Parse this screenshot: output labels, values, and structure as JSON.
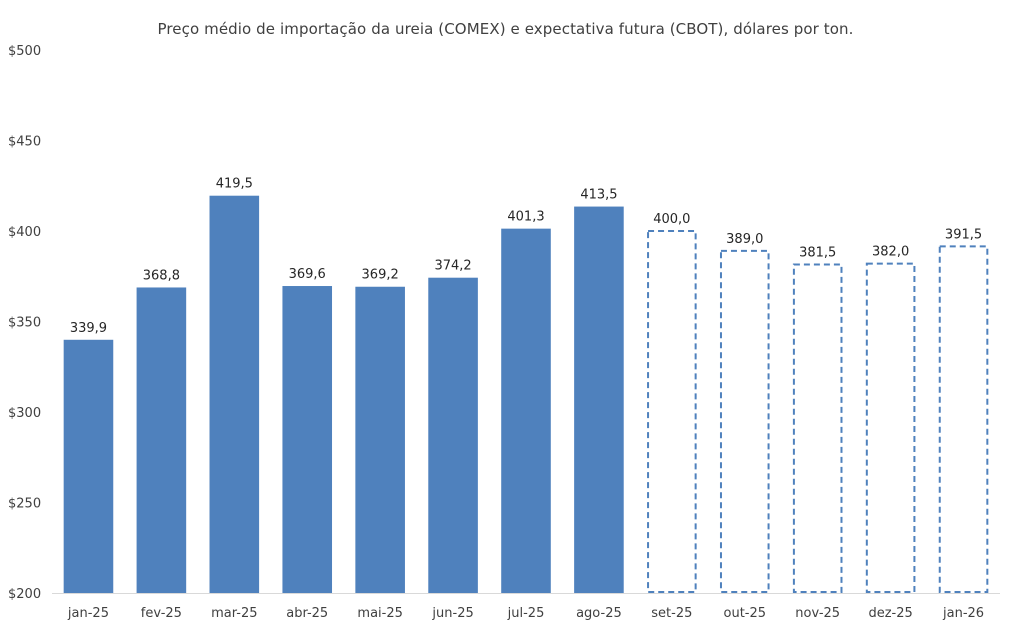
{
  "chart_data": {
    "type": "bar",
    "title": "Preço médio de importação da ureia (COMEX) e expectativa futura (CBOT), dólares por ton.",
    "xlabel": "",
    "ylabel": "",
    "ylim": [
      200,
      500
    ],
    "yticks": [
      200,
      250,
      300,
      350,
      400,
      450,
      500
    ],
    "ytick_labels": [
      "$200",
      "$250",
      "$300",
      "$350",
      "$400",
      "$450",
      "$500"
    ],
    "grid": false,
    "categories": [
      "jan-25",
      "fev-25",
      "mar-25",
      "abr-25",
      "mai-25",
      "jun-25",
      "jul-25",
      "ago-25",
      "set-25",
      "out-25",
      "nov-25",
      "dez-25",
      "jan-26"
    ],
    "values": [
      339.9,
      368.8,
      419.5,
      369.6,
      369.2,
      374.2,
      401.3,
      413.5,
      400.0,
      389.0,
      381.5,
      382.0,
      391.5
    ],
    "value_labels": [
      "339,9",
      "368,8",
      "419,5",
      "369,6",
      "369,2",
      "374,2",
      "401,3",
      "413,5",
      "400,0",
      "389,0",
      "381,5",
      "382,0",
      "391,5"
    ],
    "bar_styles": [
      "actual",
      "actual",
      "actual",
      "actual",
      "actual",
      "actual",
      "actual",
      "actual",
      "forecast",
      "forecast",
      "forecast",
      "forecast",
      "forecast"
    ],
    "colors": {
      "actual_fill": "#4f81bd",
      "forecast_stroke": "#4f81bd",
      "axis": "#d9d9d9"
    }
  }
}
